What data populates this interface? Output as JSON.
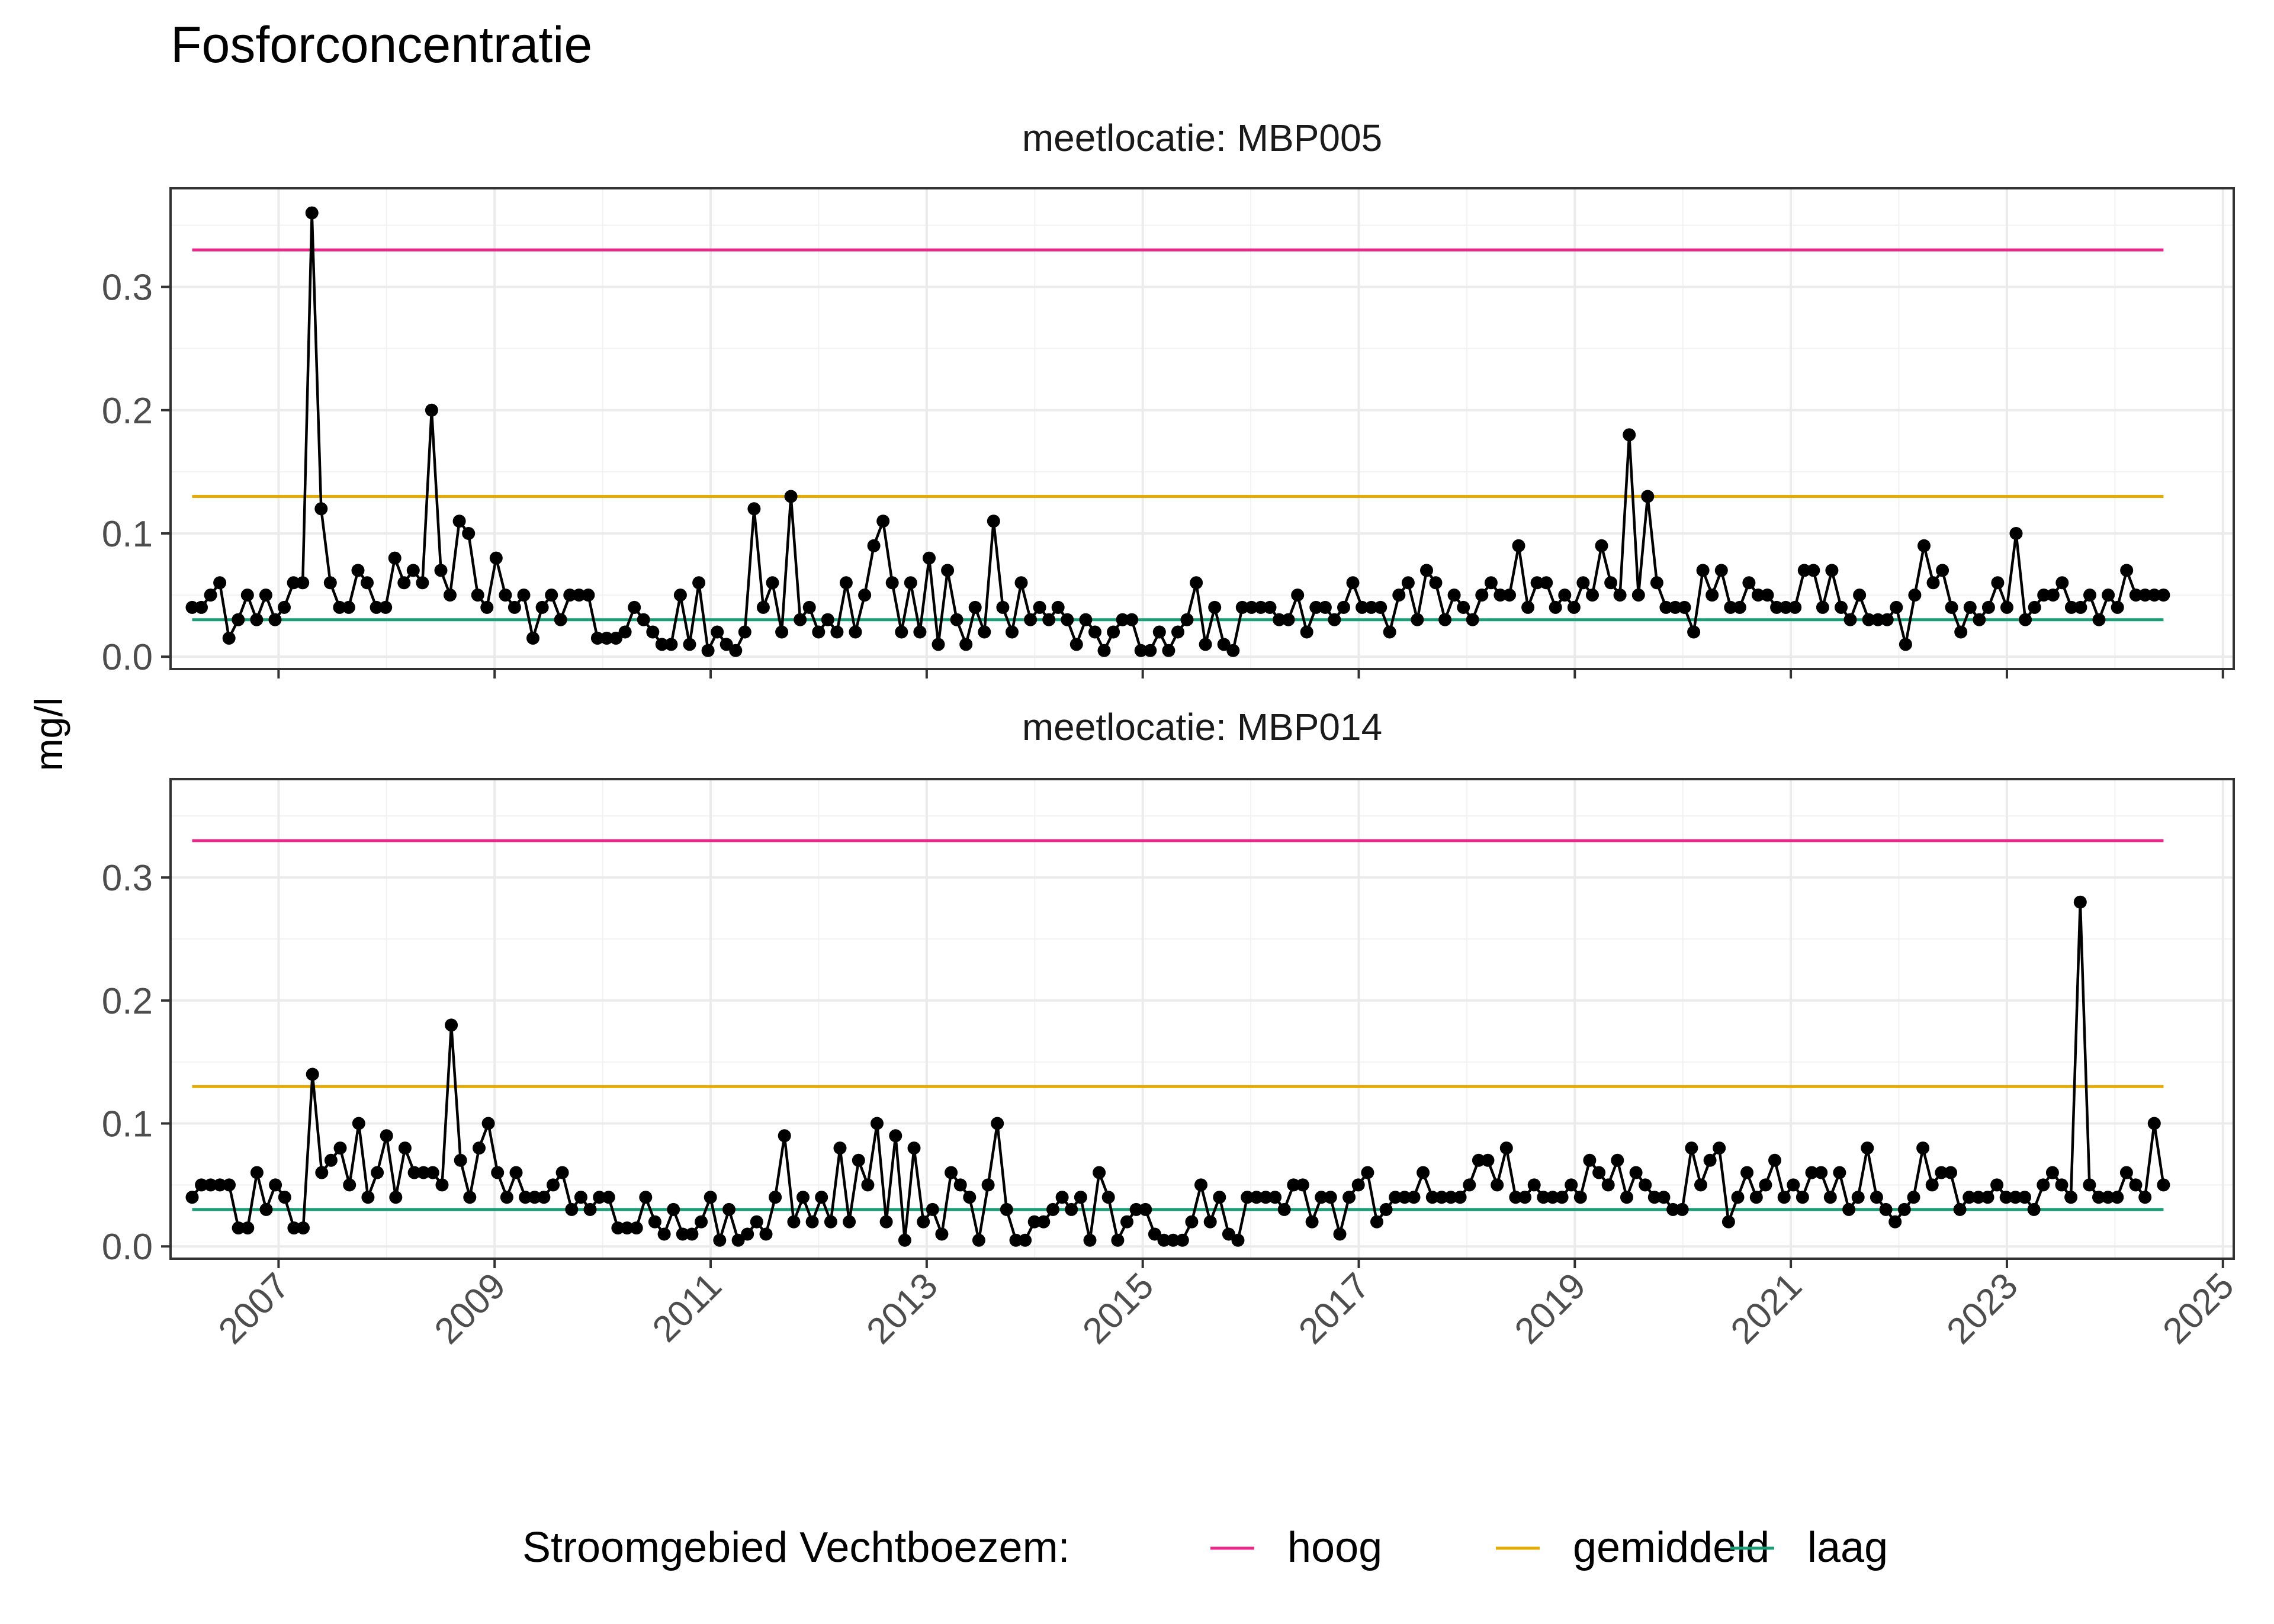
{
  "chart_data": {
    "type": "line",
    "title": "Fosforconcentratie",
    "ylabel": "mg/l",
    "xlabel": "",
    "x_ticks": [
      "2007",
      "2009",
      "2011",
      "2013",
      "2015",
      "2017",
      "2019",
      "2021",
      "2023",
      "2025"
    ],
    "y_ticks": [
      "0.0",
      "0.1",
      "0.2",
      "0.3"
    ],
    "xlim": [
      2006.0,
      2025.1
    ],
    "ylim": [
      -0.01,
      0.38
    ],
    "grid": true,
    "facet_prefix": "meetlocatie: ",
    "legend": {
      "title": "Stroomgebied Vechtboezem:",
      "position": "bottom",
      "items": [
        {
          "label": "hoog",
          "color": "#e7298a"
        },
        {
          "label": "gemiddeld",
          "color": "#e6ab02"
        },
        {
          "label": "laag",
          "color": "#1b9e77"
        }
      ]
    },
    "series_color": "#000000",
    "reference_lines": [
      {
        "name": "hoog",
        "value": 0.33,
        "x_range": [
          2006.2,
          2024.45
        ],
        "color": "#e7298a"
      },
      {
        "name": "gemiddeld",
        "value": 0.13,
        "x_range": [
          2006.2,
          2024.45
        ],
        "color": "#e6ab02"
      },
      {
        "name": "laag",
        "value": 0.03,
        "x_range": [
          2006.2,
          2024.45
        ],
        "color": "#1b9e77"
      }
    ],
    "panels": [
      {
        "location": "MBP005",
        "x_start": 2006.2,
        "x_end": 2024.45,
        "values": [
          0.04,
          0.04,
          0.05,
          0.06,
          0.015,
          0.03,
          0.05,
          0.03,
          0.05,
          0.03,
          0.04,
          0.06,
          0.06,
          0.36,
          0.12,
          0.06,
          0.04,
          0.04,
          0.07,
          0.06,
          0.04,
          0.04,
          0.08,
          0.06,
          0.07,
          0.06,
          0.2,
          0.07,
          0.05,
          0.11,
          0.1,
          0.05,
          0.04,
          0.08,
          0.05,
          0.04,
          0.05,
          0.015,
          0.04,
          0.05,
          0.03,
          0.05,
          0.05,
          0.05,
          0.015,
          0.015,
          0.015,
          0.02,
          0.04,
          0.03,
          0.02,
          0.01,
          0.01,
          0.05,
          0.01,
          0.06,
          0.005,
          0.02,
          0.01,
          0.005,
          0.02,
          0.12,
          0.04,
          0.06,
          0.02,
          0.13,
          0.03,
          0.04,
          0.02,
          0.03,
          0.02,
          0.06,
          0.02,
          0.05,
          0.09,
          0.11,
          0.06,
          0.02,
          0.06,
          0.02,
          0.08,
          0.01,
          0.07,
          0.03,
          0.01,
          0.04,
          0.02,
          0.11,
          0.04,
          0.02,
          0.06,
          0.03,
          0.04,
          0.03,
          0.04,
          0.03,
          0.01,
          0.03,
          0.02,
          0.005,
          0.02,
          0.03,
          0.03,
          0.005,
          0.005,
          0.02,
          0.005,
          0.02,
          0.03,
          0.06,
          0.01,
          0.04,
          0.01,
          0.005,
          0.04,
          0.04,
          0.04,
          0.04,
          0.03,
          0.03,
          0.05,
          0.02,
          0.04,
          0.04,
          0.03,
          0.04,
          0.06,
          0.04,
          0.04,
          0.04,
          0.02,
          0.05,
          0.06,
          0.03,
          0.07,
          0.06,
          0.03,
          0.05,
          0.04,
          0.03,
          0.05,
          0.06,
          0.05,
          0.05,
          0.09,
          0.04,
          0.06,
          0.06,
          0.04,
          0.05,
          0.04,
          0.06,
          0.05,
          0.09,
          0.06,
          0.05,
          0.18,
          0.05,
          0.13,
          0.06,
          0.04,
          0.04,
          0.04,
          0.02,
          0.07,
          0.05,
          0.07,
          0.04,
          0.04,
          0.06,
          0.05,
          0.05,
          0.04,
          0.04,
          0.04,
          0.07,
          0.07,
          0.04,
          0.07,
          0.04,
          0.03,
          0.05,
          0.03,
          0.03,
          0.03,
          0.04,
          0.01,
          0.05,
          0.09,
          0.06,
          0.07,
          0.04,
          0.02,
          0.04,
          0.03,
          0.04,
          0.06,
          0.04,
          0.1,
          0.03,
          0.04,
          0.05,
          0.05,
          0.06,
          0.04,
          0.04,
          0.05,
          0.03,
          0.05,
          0.04,
          0.07,
          0.05,
          0.05,
          0.05,
          0.05
        ]
      },
      {
        "location": "MBP014",
        "x_start": 2006.2,
        "x_end": 2024.45,
        "values": [
          0.04,
          0.05,
          0.05,
          0.05,
          0.05,
          0.015,
          0.015,
          0.06,
          0.03,
          0.05,
          0.04,
          0.015,
          0.015,
          0.14,
          0.06,
          0.07,
          0.08,
          0.05,
          0.1,
          0.04,
          0.06,
          0.09,
          0.04,
          0.08,
          0.06,
          0.06,
          0.06,
          0.05,
          0.18,
          0.07,
          0.04,
          0.08,
          0.1,
          0.06,
          0.04,
          0.06,
          0.04,
          0.04,
          0.04,
          0.05,
          0.06,
          0.03,
          0.04,
          0.03,
          0.04,
          0.04,
          0.015,
          0.015,
          0.015,
          0.04,
          0.02,
          0.01,
          0.03,
          0.01,
          0.01,
          0.02,
          0.04,
          0.005,
          0.03,
          0.005,
          0.01,
          0.02,
          0.01,
          0.04,
          0.09,
          0.02,
          0.04,
          0.02,
          0.04,
          0.02,
          0.08,
          0.02,
          0.07,
          0.05,
          0.1,
          0.02,
          0.09,
          0.005,
          0.08,
          0.02,
          0.03,
          0.01,
          0.06,
          0.05,
          0.04,
          0.005,
          0.05,
          0.1,
          0.03,
          0.005,
          0.005,
          0.02,
          0.02,
          0.03,
          0.04,
          0.03,
          0.04,
          0.005,
          0.06,
          0.04,
          0.005,
          0.02,
          0.03,
          0.03,
          0.01,
          0.005,
          0.005,
          0.005,
          0.02,
          0.05,
          0.02,
          0.04,
          0.01,
          0.005,
          0.04,
          0.04,
          0.04,
          0.04,
          0.03,
          0.05,
          0.05,
          0.02,
          0.04,
          0.04,
          0.01,
          0.04,
          0.05,
          0.06,
          0.02,
          0.03,
          0.04,
          0.04,
          0.04,
          0.06,
          0.04,
          0.04,
          0.04,
          0.04,
          0.05,
          0.07,
          0.07,
          0.05,
          0.08,
          0.04,
          0.04,
          0.05,
          0.04,
          0.04,
          0.04,
          0.05,
          0.04,
          0.07,
          0.06,
          0.05,
          0.07,
          0.04,
          0.06,
          0.05,
          0.04,
          0.04,
          0.03,
          0.03,
          0.08,
          0.05,
          0.07,
          0.08,
          0.02,
          0.04,
          0.06,
          0.04,
          0.05,
          0.07,
          0.04,
          0.05,
          0.04,
          0.06,
          0.06,
          0.04,
          0.06,
          0.03,
          0.04,
          0.08,
          0.04,
          0.03,
          0.02,
          0.03,
          0.04,
          0.08,
          0.05,
          0.06,
          0.06,
          0.03,
          0.04,
          0.04,
          0.04,
          0.05,
          0.04,
          0.04,
          0.04,
          0.03,
          0.05,
          0.06,
          0.05,
          0.04,
          0.28,
          0.05,
          0.04,
          0.04,
          0.04,
          0.06,
          0.05,
          0.04,
          0.1,
          0.05
        ]
      }
    ]
  }
}
